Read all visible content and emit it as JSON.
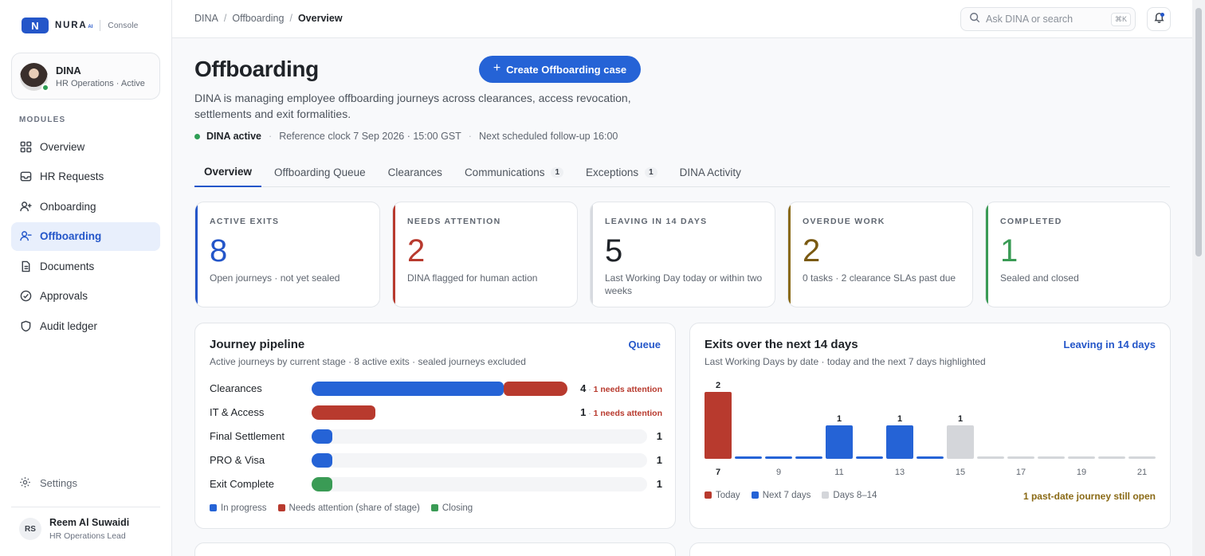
{
  "brand": {
    "name": "NURA",
    "ai": "AI",
    "product": "Console",
    "mark": "N"
  },
  "agent": {
    "name": "DINA",
    "role": "HR Operations · Active"
  },
  "sidebar": {
    "section_label": "MODULES",
    "items": [
      {
        "label": "Overview",
        "icon": "grid-icon"
      },
      {
        "label": "HR Requests",
        "icon": "inbox-icon"
      },
      {
        "label": "Onboarding",
        "icon": "user-plus-icon"
      },
      {
        "label": "Offboarding",
        "icon": "user-minus-icon",
        "active": true
      },
      {
        "label": "Documents",
        "icon": "document-icon"
      },
      {
        "label": "Approvals",
        "icon": "check-circle-icon"
      },
      {
        "label": "Audit ledger",
        "icon": "shield-icon"
      }
    ],
    "settings_label": "Settings"
  },
  "user": {
    "initials": "RS",
    "name": "Reem Al Suwaidi",
    "role": "HR Operations Lead"
  },
  "topbar": {
    "breadcrumb": [
      "DINA",
      "Offboarding",
      "Overview"
    ],
    "search_placeholder": "Ask DINA or search",
    "search_shortcut": "⌘K"
  },
  "header": {
    "title": "Offboarding",
    "create_button": "Create Offboarding case",
    "description": "DINA is managing employee offboarding journeys across clearances, access revocation, settlements and exit formalities.",
    "status": "DINA active",
    "reference_clock": "Reference clock 7 Sep 2026 · 15:00 GST",
    "next_followup": "Next scheduled follow-up 16:00"
  },
  "tabs": [
    {
      "label": "Overview",
      "active": true
    },
    {
      "label": "Offboarding Queue"
    },
    {
      "label": "Clearances"
    },
    {
      "label": "Communications",
      "count": "1"
    },
    {
      "label": "Exceptions",
      "count": "1"
    },
    {
      "label": "DINA Activity"
    }
  ],
  "kpis": [
    {
      "label": "ACTIVE EXITS",
      "value": "8",
      "sub": "Open journeys · not yet sealed",
      "color": "#2456c9",
      "value_color": "#2456c9"
    },
    {
      "label": "NEEDS ATTENTION",
      "value": "2",
      "sub": "DINA flagged for human action",
      "color": "#b83a2e",
      "value_color": "#b83a2e"
    },
    {
      "label": "LEAVING IN 14 DAYS",
      "value": "5",
      "sub": "Last Working Day today or within two weeks",
      "color": "#d7dadf",
      "value_color": "#1f2328"
    },
    {
      "label": "OVERDUE WORK",
      "value": "2",
      "sub": "0 tasks · 2 clearance SLAs past due",
      "color": "#8a6a16",
      "value_color": "#7a5a12"
    },
    {
      "label": "COMPLETED",
      "value": "1",
      "sub": "Sealed and closed",
      "color": "#3a9b55",
      "value_color": "#3a9b55"
    }
  ],
  "pipeline": {
    "title": "Journey pipeline",
    "subtitle": "Active journeys by current stage · 8 active exits · sealed journeys excluded",
    "link": "Queue",
    "max": 5,
    "rows": [
      {
        "stage": "Clearances",
        "total": 4,
        "in_progress": 3,
        "attention": 1,
        "closing": 0,
        "attention_label": "1 needs attention"
      },
      {
        "stage": "IT & Access",
        "total": 1,
        "in_progress": 0,
        "attention": 1,
        "closing": 0,
        "attention_label": "1 needs attention"
      },
      {
        "stage": "Final Settlement",
        "total": 1,
        "in_progress": 1,
        "attention": 0,
        "closing": 0
      },
      {
        "stage": "PRO & Visa",
        "total": 1,
        "in_progress": 1,
        "attention": 0,
        "closing": 0
      },
      {
        "stage": "Exit Complete",
        "total": 1,
        "in_progress": 0,
        "attention": 0,
        "closing": 1
      }
    ],
    "legend": [
      {
        "label": "In progress",
        "color": "#2563d6"
      },
      {
        "label": "Needs attention (share of stage)",
        "color": "#b83a2e"
      },
      {
        "label": "Closing",
        "color": "#3a9b55"
      }
    ]
  },
  "exits_chart": {
    "title": "Exits over the next 14 days",
    "subtitle": "Last Working Days by date · today and the next 7 days highlighted",
    "link": "Leaving in 14 days",
    "legend": [
      {
        "label": "Today",
        "color": "#b83a2e"
      },
      {
        "label": "Next 7 days",
        "color": "#2563d6"
      },
      {
        "label": "Days 8–14",
        "color": "#d4d6da"
      }
    ],
    "note": "1 past-date journey still open"
  },
  "chart_data": {
    "type": "bar",
    "categories": [
      "7",
      "8",
      "9",
      "10",
      "11",
      "12",
      "13",
      "14",
      "15",
      "16",
      "17",
      "18",
      "19",
      "20",
      "21"
    ],
    "tick_labels": [
      "7",
      "9",
      "11",
      "13",
      "15",
      "17",
      "19",
      "21"
    ],
    "values": [
      2,
      0,
      0,
      0,
      1,
      0,
      1,
      0,
      1,
      0,
      0,
      0,
      0,
      0,
      0
    ],
    "groups": [
      "today",
      "next7",
      "next7",
      "next7",
      "next7",
      "next7",
      "next7",
      "next7",
      "days8_14",
      "days8_14",
      "days8_14",
      "days8_14",
      "days8_14",
      "days8_14",
      "days8_14"
    ],
    "ylim": [
      0,
      2
    ],
    "legend_placement": "bottom-left",
    "grid": false
  }
}
